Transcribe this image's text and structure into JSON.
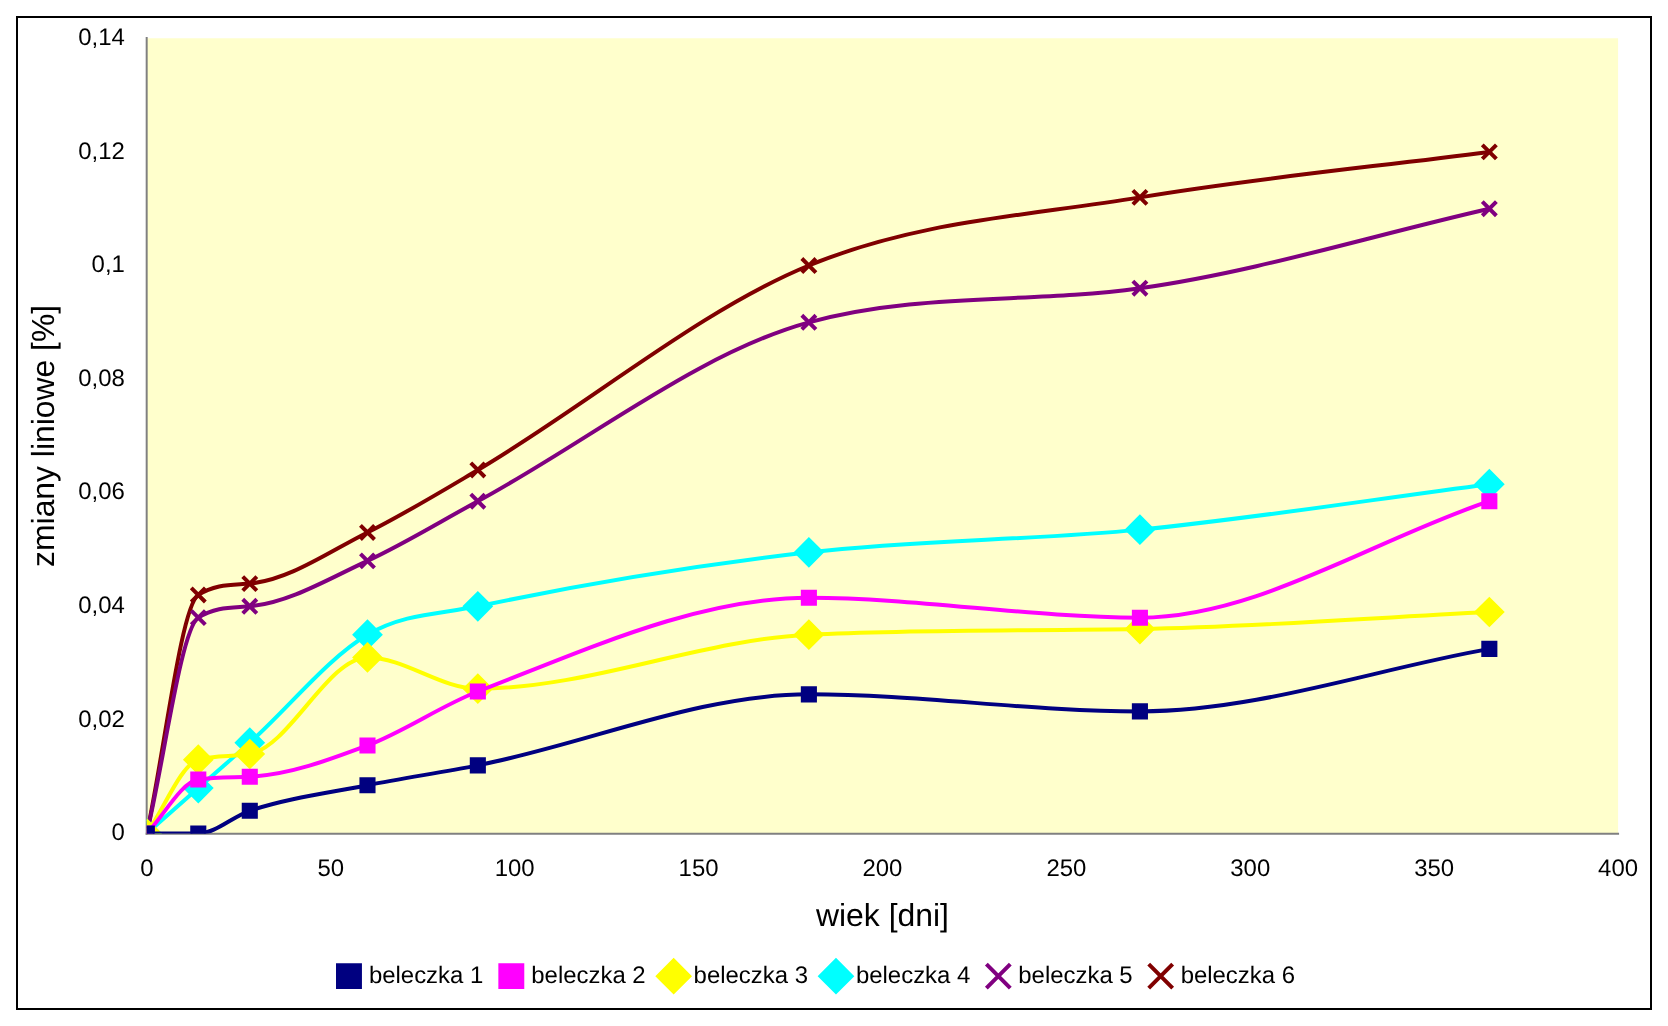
{
  "chart_data": {
    "type": "line",
    "xlabel": "wiek [dni]",
    "ylabel": "zmiany liniowe [%]",
    "x": [
      0,
      14,
      28,
      60,
      90,
      180,
      270,
      365
    ],
    "xlim": [
      0,
      400
    ],
    "xticks": [
      0,
      50,
      100,
      150,
      200,
      250,
      300,
      350,
      400
    ],
    "ylim": [
      0,
      0.14
    ],
    "yticks": [
      {
        "value": 0,
        "label": "0"
      },
      {
        "value": 0.02,
        "label": "0,02"
      },
      {
        "value": 0.04,
        "label": "0,04"
      },
      {
        "value": 0.06,
        "label": "0,06"
      },
      {
        "value": 0.08,
        "label": "0,08"
      },
      {
        "value": 0.1,
        "label": "0,1"
      },
      {
        "value": 0.12,
        "label": "0,12"
      },
      {
        "value": 0.14,
        "label": "0,14"
      }
    ],
    "grid": false,
    "legend": "bottom",
    "line_style": "solid",
    "series": [
      {
        "name": "beleczka 1",
        "color": "#000080",
        "marker": "square",
        "values": [
          0,
          0,
          0.004,
          0.0085,
          0.012,
          0.0245,
          0.0215,
          0.0325
        ]
      },
      {
        "name": "beleczka 2",
        "color": "#ff00ff",
        "marker": "square",
        "values": [
          0,
          0.0095,
          0.01,
          0.0155,
          0.025,
          0.0415,
          0.038,
          0.0585
        ]
      },
      {
        "name": "beleczka 3",
        "color": "#ffff00",
        "marker": "diamond",
        "values": [
          0,
          0.013,
          0.014,
          0.031,
          0.0255,
          0.035,
          0.036,
          0.039
        ]
      },
      {
        "name": "beleczka 4",
        "color": "#00ffff",
        "marker": "diamond",
        "values": [
          0,
          0.008,
          0.016,
          0.035,
          0.04,
          0.0495,
          0.0535,
          0.0615
        ]
      },
      {
        "name": "beleczka 5",
        "color": "#800080",
        "marker": "cross",
        "values": [
          0,
          0.038,
          0.04,
          0.048,
          0.0585,
          0.09,
          0.096,
          0.11
        ]
      },
      {
        "name": "beleczka 6",
        "color": "#800000",
        "marker": "cross",
        "values": [
          0,
          0.042,
          0.044,
          0.053,
          0.064,
          0.1,
          0.112,
          0.12
        ]
      }
    ]
  }
}
